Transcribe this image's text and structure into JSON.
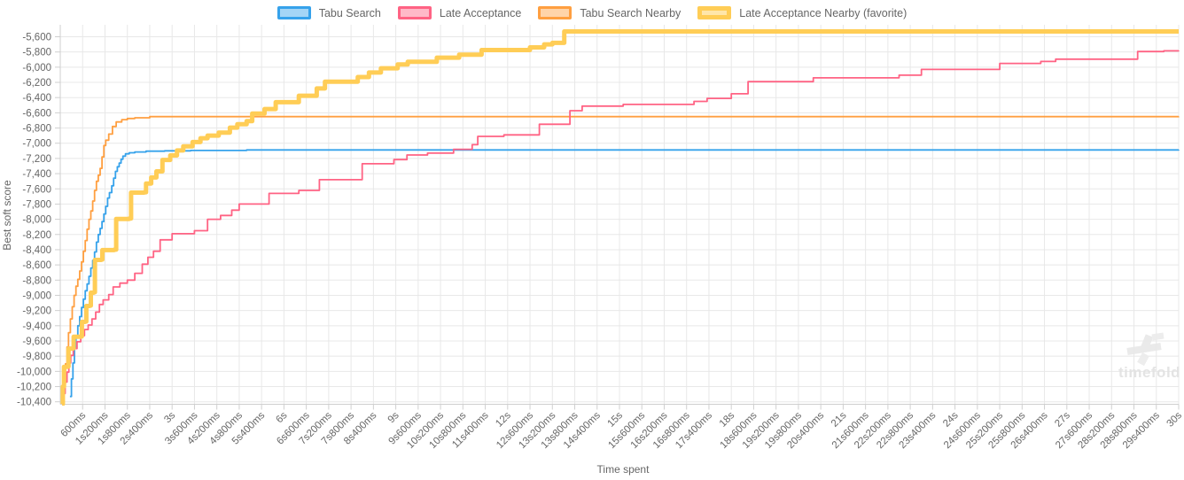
{
  "axes": {
    "y_title": "Best soft score",
    "x_title": "Time spent",
    "y_ticks": {
      "values": [
        -5600,
        -5800,
        -6000,
        -6200,
        -6400,
        -6600,
        -6800,
        -7000,
        -7200,
        -7400,
        -7600,
        -7800,
        -8000,
        -8200,
        -8400,
        -8600,
        -8800,
        -9000,
        -9200,
        -9400,
        -9600,
        -9800,
        -10000,
        -10200,
        -10400
      ],
      "labels": [
        "-5,600",
        "-5,800",
        "-6,000",
        "-6,200",
        "-6,400",
        "-6,600",
        "-6,800",
        "-7,000",
        "-7,200",
        "-7,400",
        "-7,600",
        "-7,800",
        "-8,000",
        "-8,200",
        "-8,400",
        "-8,600",
        "-8,800",
        "-9,000",
        "-9,200",
        "-9,400",
        "-9,600",
        "-9,800",
        "-10,000",
        "-10,200",
        "-10,400"
      ]
    },
    "x_ticks": {
      "times": [
        0.6,
        1.2,
        1.8,
        2.4,
        3,
        3.6,
        4.2,
        4.8,
        5.4,
        6,
        6.6,
        7.2,
        7.8,
        8.4,
        9,
        9.6,
        10.2,
        10.8,
        11.4,
        12,
        12.6,
        13.2,
        13.8,
        14.4,
        15,
        15.6,
        16.2,
        16.8,
        17.4,
        18,
        18.6,
        19.2,
        19.8,
        20.4,
        21,
        21.6,
        22.2,
        22.8,
        23.4,
        24,
        24.6,
        25.2,
        25.8,
        26.4,
        27,
        27.6,
        28.2,
        28.8,
        29.4,
        30
      ],
      "labels": [
        "600ms",
        "1s200ms",
        "1s800ms",
        "2s400ms",
        "3s",
        "3s600ms",
        "4s200ms",
        "4s800ms",
        "5s400ms",
        "6s",
        "6s600ms",
        "7s200ms",
        "7s800ms",
        "8s400ms",
        "9s",
        "9s600ms",
        "10s200ms",
        "10s800ms",
        "11s400ms",
        "12s",
        "12s600ms",
        "13s200ms",
        "13s800ms",
        "14s400ms",
        "15s",
        "15s600ms",
        "16s200ms",
        "16s800ms",
        "17s400ms",
        "18s",
        "18s600ms",
        "19s200ms",
        "19s800ms",
        "20s400ms",
        "21s",
        "21s600ms",
        "22s200ms",
        "22s800ms",
        "23s400ms",
        "24s",
        "24s600ms",
        "25s200ms",
        "25s800ms",
        "26s400ms",
        "27s",
        "27s600ms",
        "28s200ms",
        "28s800ms",
        "29s400ms",
        "30s"
      ]
    }
  },
  "watermark": {
    "text": "timefold"
  },
  "chart_data": {
    "type": "line",
    "title": "",
    "xlabel": "Time spent",
    "ylabel": "Best soft score",
    "x_unit": "seconds",
    "xlim": [
      0,
      30
    ],
    "ylim": [
      -10450,
      -5450
    ],
    "grid": true,
    "legend_position": "top",
    "line_style": "step-after",
    "series": [
      {
        "name": "Tabu Search",
        "color": "#36A2EB",
        "fill": "rgba(54,162,235,0.45)",
        "line_width": 1.8,
        "points": [
          [
            0.26,
            -10330
          ],
          [
            0.3,
            -10100
          ],
          [
            0.34,
            -9890
          ],
          [
            0.38,
            -9700
          ],
          [
            0.42,
            -9560
          ],
          [
            0.47,
            -9400
          ],
          [
            0.52,
            -9280
          ],
          [
            0.57,
            -9160
          ],
          [
            0.62,
            -9050
          ],
          [
            0.67,
            -8940
          ],
          [
            0.72,
            -8850
          ],
          [
            0.77,
            -8750
          ],
          [
            0.82,
            -8640
          ],
          [
            0.87,
            -8540
          ],
          [
            0.92,
            -8430
          ],
          [
            0.97,
            -8300
          ],
          [
            1.02,
            -8200
          ],
          [
            1.07,
            -8120
          ],
          [
            1.12,
            -8030
          ],
          [
            1.17,
            -7930
          ],
          [
            1.22,
            -7830
          ],
          [
            1.27,
            -7720
          ],
          [
            1.32,
            -7650
          ],
          [
            1.38,
            -7560
          ],
          [
            1.43,
            -7460
          ],
          [
            1.48,
            -7370
          ],
          [
            1.53,
            -7310
          ],
          [
            1.58,
            -7260
          ],
          [
            1.63,
            -7210
          ],
          [
            1.68,
            -7170
          ],
          [
            1.75,
            -7140
          ],
          [
            1.85,
            -7125
          ],
          [
            2.0,
            -7115
          ],
          [
            2.3,
            -7105
          ],
          [
            2.8,
            -7100
          ],
          [
            3.5,
            -7095
          ],
          [
            5.0,
            -7088
          ],
          [
            30,
            -7085
          ]
        ]
      },
      {
        "name": "Late Acceptance",
        "color": "#FF6384",
        "fill": "rgba(255,99,132,0.45)",
        "line_width": 1.8,
        "points": [
          [
            0.05,
            -10430
          ],
          [
            0.09,
            -10290
          ],
          [
            0.13,
            -10140
          ],
          [
            0.18,
            -10010
          ],
          [
            0.23,
            -9890
          ],
          [
            0.28,
            -9790
          ],
          [
            0.35,
            -9700
          ],
          [
            0.45,
            -9610
          ],
          [
            0.55,
            -9530
          ],
          [
            0.65,
            -9450
          ],
          [
            0.75,
            -9390
          ],
          [
            0.85,
            -9310
          ],
          [
            0.95,
            -9220
          ],
          [
            1.05,
            -9120
          ],
          [
            1.15,
            -9060
          ],
          [
            1.3,
            -8990
          ],
          [
            1.42,
            -8890
          ],
          [
            1.6,
            -8840
          ],
          [
            1.8,
            -8800
          ],
          [
            2.0,
            -8710
          ],
          [
            2.2,
            -8590
          ],
          [
            2.35,
            -8500
          ],
          [
            2.5,
            -8420
          ],
          [
            2.68,
            -8270
          ],
          [
            3.0,
            -8190
          ],
          [
            3.6,
            -8150
          ],
          [
            3.95,
            -8000
          ],
          [
            4.3,
            -7950
          ],
          [
            4.6,
            -7880
          ],
          [
            4.8,
            -7800
          ],
          [
            5.6,
            -7660
          ],
          [
            6.4,
            -7620
          ],
          [
            6.95,
            -7480
          ],
          [
            8.1,
            -7270
          ],
          [
            8.95,
            -7215
          ],
          [
            9.3,
            -7155
          ],
          [
            9.85,
            -7130
          ],
          [
            10.55,
            -7080
          ],
          [
            11.05,
            -7020
          ],
          [
            11.2,
            -6910
          ],
          [
            11.9,
            -6890
          ],
          [
            12.85,
            -6750
          ],
          [
            13.67,
            -6572
          ],
          [
            14.0,
            -6512
          ],
          [
            15.1,
            -6490
          ],
          [
            17.0,
            -6450
          ],
          [
            17.35,
            -6410
          ],
          [
            18.0,
            -6350
          ],
          [
            18.45,
            -6190
          ],
          [
            20.2,
            -6140
          ],
          [
            22.5,
            -6105
          ],
          [
            23.1,
            -6030
          ],
          [
            25.2,
            -5950
          ],
          [
            26.3,
            -5925
          ],
          [
            26.7,
            -5895
          ],
          [
            28.9,
            -5795
          ],
          [
            29.6,
            -5785
          ],
          [
            30,
            -5782
          ]
        ]
      },
      {
        "name": "Tabu Search Nearby",
        "color": "#FF9F40",
        "fill": "rgba(255,159,64,0.45)",
        "line_width": 1.8,
        "points": [
          [
            0.07,
            -10420
          ],
          [
            0.1,
            -10150
          ],
          [
            0.14,
            -9900
          ],
          [
            0.18,
            -9680
          ],
          [
            0.22,
            -9490
          ],
          [
            0.27,
            -9310
          ],
          [
            0.32,
            -9150
          ],
          [
            0.37,
            -9000
          ],
          [
            0.42,
            -8880
          ],
          [
            0.47,
            -8790
          ],
          [
            0.52,
            -8680
          ],
          [
            0.57,
            -8560
          ],
          [
            0.62,
            -8420
          ],
          [
            0.67,
            -8280
          ],
          [
            0.72,
            -8130
          ],
          [
            0.77,
            -8000
          ],
          [
            0.82,
            -7890
          ],
          [
            0.87,
            -7760
          ],
          [
            0.92,
            -7620
          ],
          [
            0.97,
            -7500
          ],
          [
            1.02,
            -7420
          ],
          [
            1.07,
            -7330
          ],
          [
            1.12,
            -7180
          ],
          [
            1.17,
            -7030
          ],
          [
            1.22,
            -6960
          ],
          [
            1.3,
            -6880
          ],
          [
            1.4,
            -6780
          ],
          [
            1.5,
            -6720
          ],
          [
            1.65,
            -6690
          ],
          [
            1.8,
            -6675
          ],
          [
            2.0,
            -6665
          ],
          [
            2.4,
            -6650
          ],
          [
            30,
            -6648
          ]
        ]
      },
      {
        "name": "Late Acceptance Nearby (favorite)",
        "color": "#FFCD56",
        "fill": "rgba(255,205,86,0.5)",
        "line_width": 5,
        "points": [
          [
            0.05,
            -10430
          ],
          [
            0.07,
            -10200
          ],
          [
            0.1,
            -9940
          ],
          [
            0.2,
            -9935
          ],
          [
            0.22,
            -9700
          ],
          [
            0.33,
            -9695
          ],
          [
            0.36,
            -9545
          ],
          [
            0.55,
            -9540
          ],
          [
            0.58,
            -9350
          ],
          [
            0.67,
            -9345
          ],
          [
            0.7,
            -9140
          ],
          [
            0.79,
            -9135
          ],
          [
            0.82,
            -8965
          ],
          [
            0.9,
            -8960
          ],
          [
            0.93,
            -8535
          ],
          [
            1.1,
            -8530
          ],
          [
            1.13,
            -8405
          ],
          [
            1.45,
            -8400
          ],
          [
            1.5,
            -7995
          ],
          [
            1.85,
            -7990
          ],
          [
            1.9,
            -7650
          ],
          [
            2.25,
            -7645
          ],
          [
            2.3,
            -7530
          ],
          [
            2.44,
            -7450
          ],
          [
            2.58,
            -7370
          ],
          [
            2.74,
            -7220
          ],
          [
            2.95,
            -7160
          ],
          [
            3.13,
            -7095
          ],
          [
            3.3,
            -7040
          ],
          [
            3.55,
            -6985
          ],
          [
            3.76,
            -6935
          ],
          [
            3.95,
            -6900
          ],
          [
            4.25,
            -6860
          ],
          [
            4.55,
            -6795
          ],
          [
            4.75,
            -6750
          ],
          [
            5.0,
            -6710
          ],
          [
            5.15,
            -6610
          ],
          [
            5.48,
            -6550
          ],
          [
            5.78,
            -6460
          ],
          [
            6.4,
            -6375
          ],
          [
            6.88,
            -6280
          ],
          [
            7.1,
            -6190
          ],
          [
            7.98,
            -6130
          ],
          [
            8.28,
            -6070
          ],
          [
            8.6,
            -6015
          ],
          [
            9.05,
            -5965
          ],
          [
            9.32,
            -5930
          ],
          [
            10.1,
            -5875
          ],
          [
            10.7,
            -5835
          ],
          [
            11.3,
            -5775
          ],
          [
            12.6,
            -5740
          ],
          [
            12.98,
            -5700
          ],
          [
            13.2,
            -5680
          ],
          [
            13.52,
            -5530
          ],
          [
            30,
            -5530
          ]
        ]
      }
    ]
  }
}
